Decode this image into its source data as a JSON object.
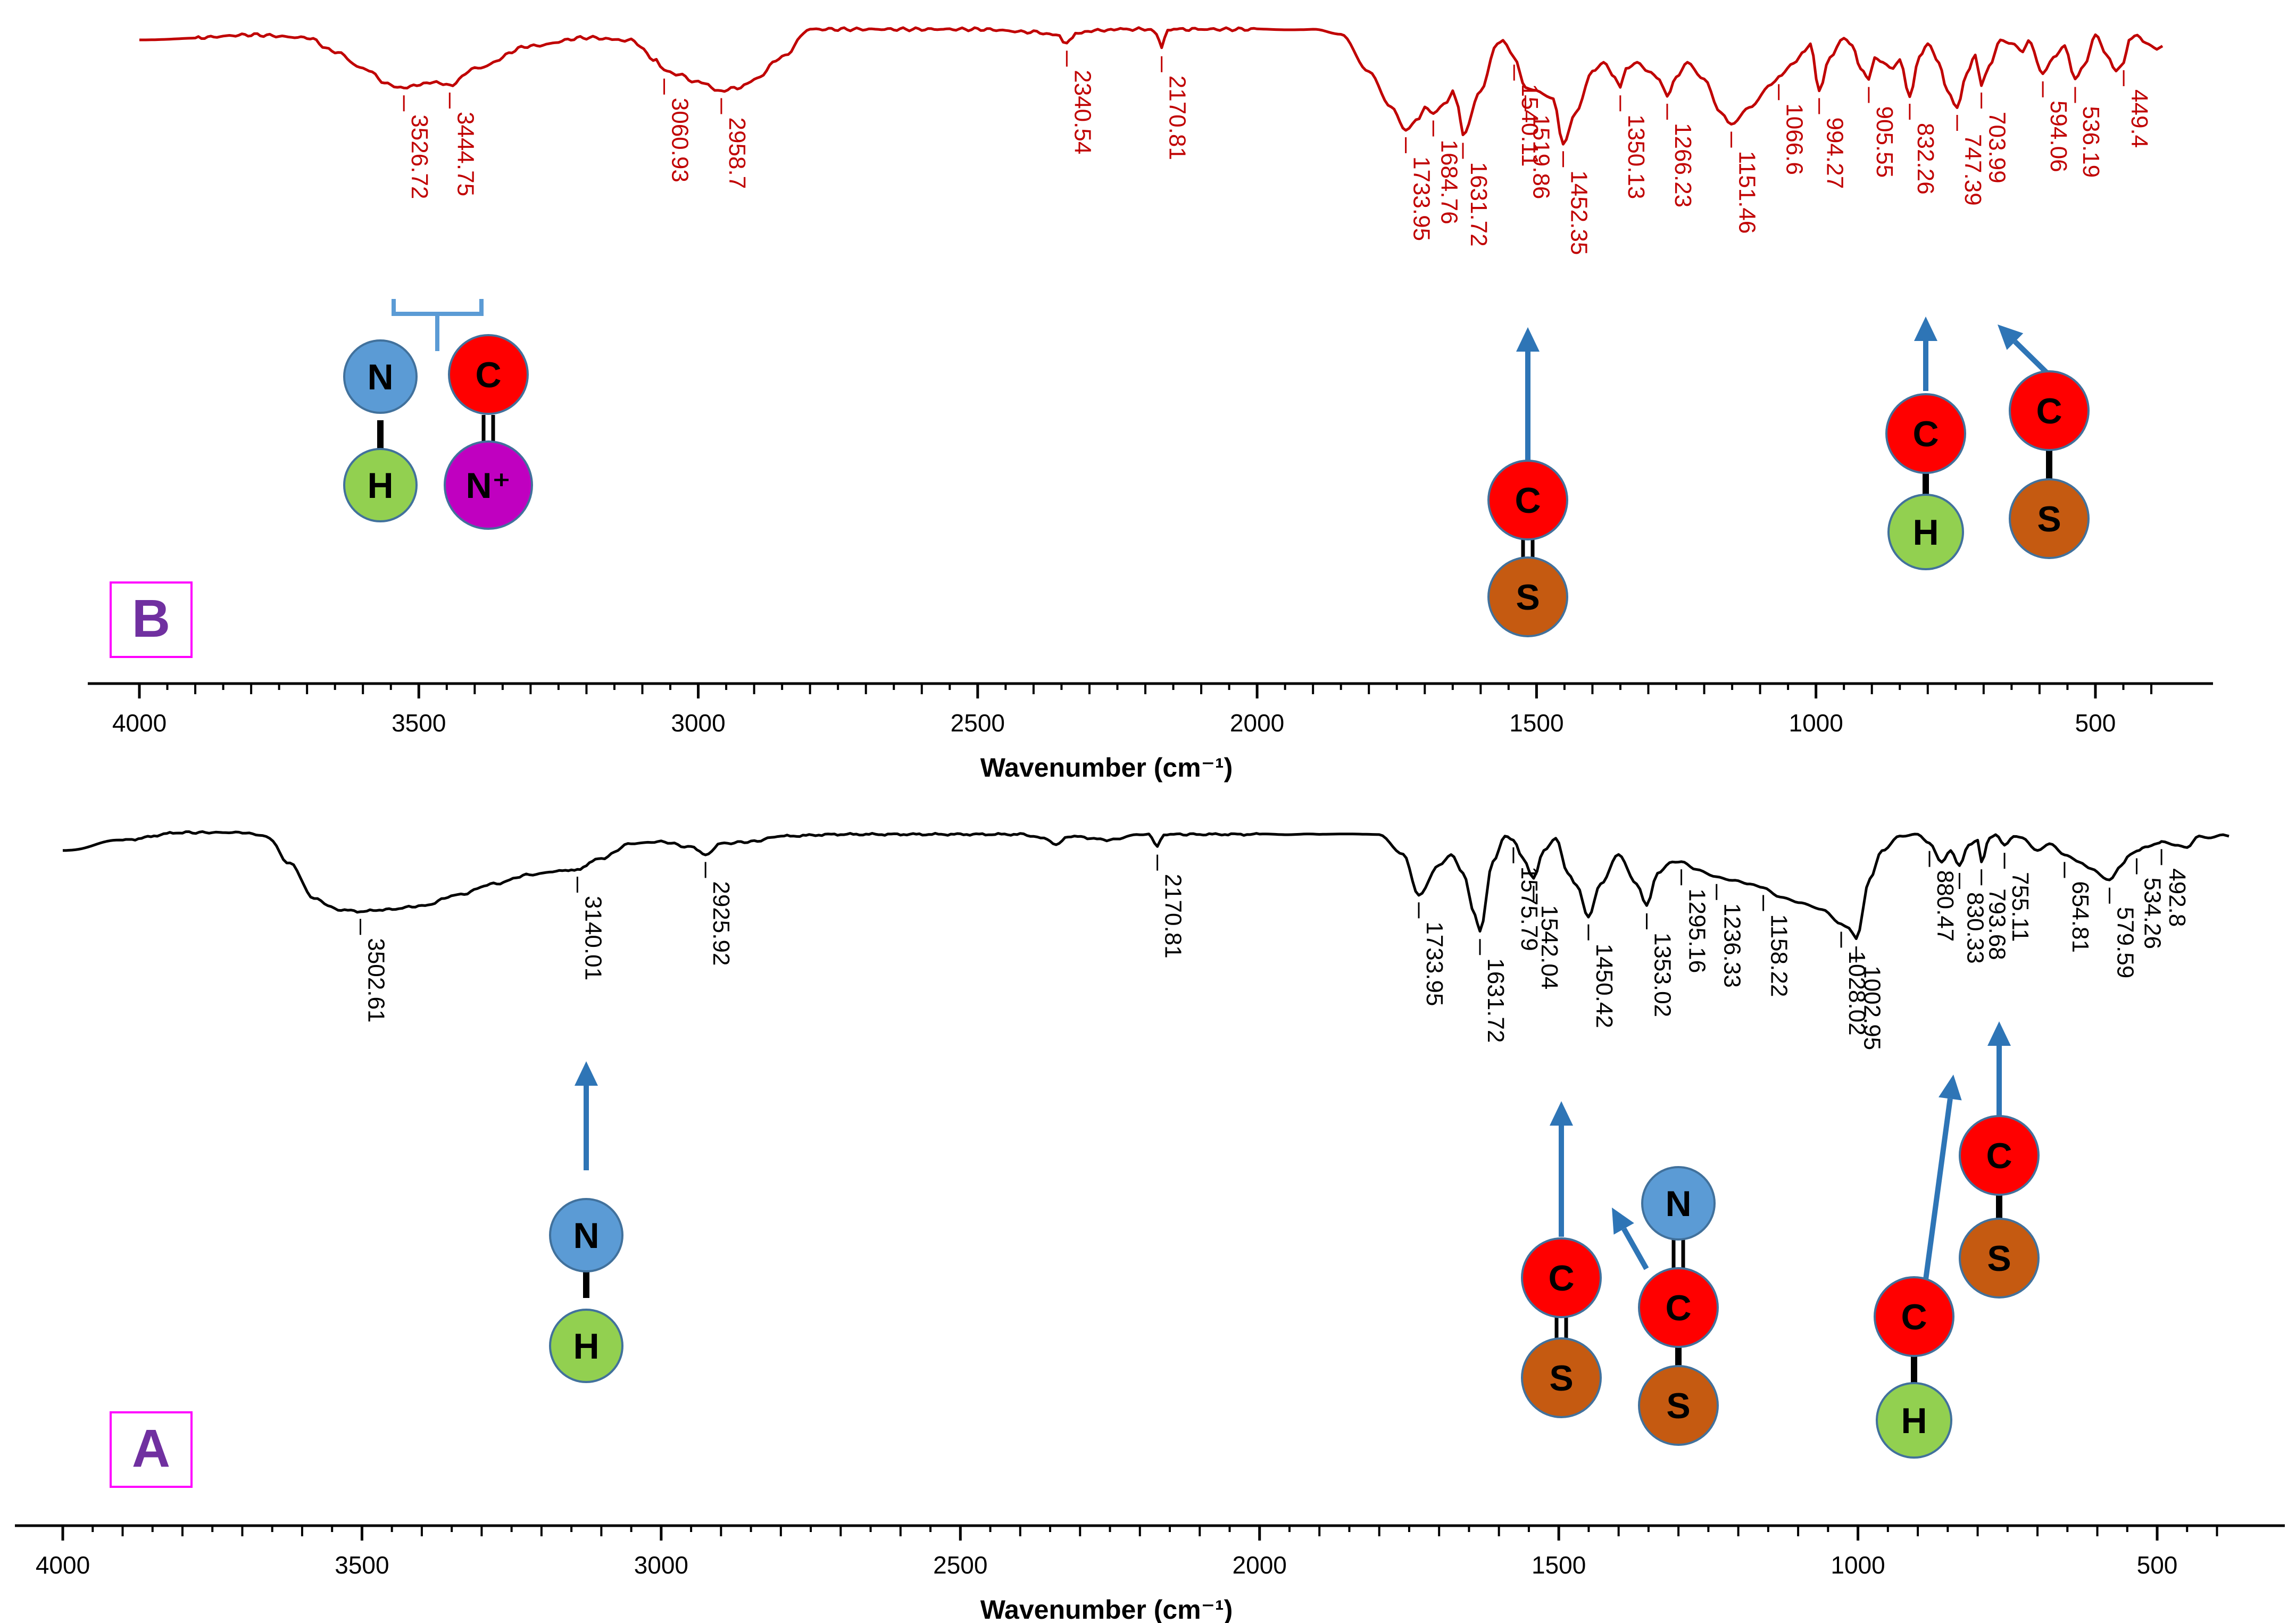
{
  "colors": {
    "spectrum_b": "#c00000",
    "spectrum_a": "#000000",
    "arrow": "#2e75b6",
    "panel_label_text": "#7030a0",
    "panel_label_border": "#ff00ff",
    "atom_N": "#5b9bd5",
    "atom_C": "#ff0000",
    "atom_H": "#92d050",
    "atom_S": "#c55a11",
    "atom_Nplus": "#c000c0"
  },
  "chart_data": [
    {
      "type": "line",
      "panel_label": "B",
      "title": "",
      "xlabel": "Wavenumber (cm⁻¹)",
      "ylabel": "",
      "xlim": [
        4000,
        380
      ],
      "ylim": [
        0,
        100
      ],
      "x_ticks": [
        4000,
        3500,
        3000,
        2500,
        2000,
        1500,
        1000,
        500
      ],
      "x_tick_labels": [
        "4000",
        "3500",
        "3000",
        "2500",
        "2000",
        "1500",
        "1000",
        "500"
      ],
      "series": [
        {
          "name": "B",
          "x": [
            4000,
            3900,
            3800,
            3700,
            3650,
            3600,
            3550,
            3526.72,
            3480,
            3444.75,
            3400,
            3300,
            3200,
            3120,
            3075,
            3060.93,
            3040,
            3000,
            2958.7,
            2930,
            2900,
            2850,
            2800,
            2700,
            2600,
            2500,
            2400,
            2360,
            2340.54,
            2320,
            2250,
            2190,
            2180,
            2170.81,
            2160,
            2100,
            2000,
            1900,
            1850,
            1800,
            1760,
            1733.95,
            1710,
            1700,
            1684.76,
            1660,
            1650,
            1640,
            1631.72,
            1600,
            1570,
            1560,
            1540.11,
            1519.86,
            1500,
            1470,
            1452.35,
            1430,
            1400,
            1380,
            1360,
            1350.13,
            1340,
            1320,
            1300,
            1280,
            1266.23,
            1250,
            1230,
            1200,
            1170,
            1151.46,
            1120,
            1080,
            1066.6,
            1040,
            1020,
            1010,
            994.27,
            975,
            950,
            935,
            920,
            905.55,
            895,
            880,
            862,
            850,
            832.26,
            815,
            800,
            780,
            765,
            747.39,
            730,
            715,
            703.99,
            690,
            670,
            650,
            630,
            620,
            594.06,
            575,
            555,
            536.19,
            520,
            500,
            480,
            463,
            449.4,
            440,
            425,
            410,
            400,
            390,
            380
          ],
          "values": [
            96,
            97,
            98,
            97,
            92,
            86,
            80,
            79,
            81,
            80,
            86,
            94,
            97,
            96,
            89,
            85,
            84,
            81,
            78,
            79,
            82,
            90,
            100,
            100,
            100,
            100,
            99,
            98,
            95,
            99,
            100,
            100,
            98,
            93,
            100,
            100,
            100,
            100,
            98,
            85,
            72,
            64,
            68,
            72,
            70,
            74,
            78,
            72,
            62,
            78,
            95,
            96,
            90,
            79,
            78,
            75,
            59,
            70,
            85,
            88,
            83,
            79,
            86,
            88,
            85,
            82,
            76,
            83,
            88,
            82,
            70,
            66,
            72,
            80,
            83,
            88,
            92,
            95,
            78,
            90,
            97,
            94,
            86,
            82,
            90,
            88,
            86,
            89,
            76,
            90,
            95,
            88,
            78,
            72,
            84,
            91,
            80,
            87,
            96,
            95,
            92,
            96,
            84,
            90,
            94,
            82,
            87,
            98,
            91,
            85,
            88,
            96,
            98,
            95,
            94,
            93,
            94
          ]
        }
      ],
      "annotations": [
        "3526.72",
        "3444.75",
        "3060.93",
        "2958.7",
        "2340.54",
        "2170.81",
        "1733.95",
        "1684.76",
        "1631.72",
        "1540.11",
        "1519.86",
        "1452.35",
        "1350.13",
        "1266.23",
        "1151.46",
        "1066.6",
        "994.27",
        "905.55",
        "832.26",
        "747.39",
        "703.99",
        "594.06",
        "536.19",
        "449.4"
      ]
    },
    {
      "type": "line",
      "panel_label": "A",
      "title": "",
      "xlabel": "Wavenumber (cm⁻¹)",
      "ylabel": "",
      "xlim": [
        4000,
        380
      ],
      "ylim": [
        0,
        100
      ],
      "x_ticks": [
        4000,
        3500,
        3000,
        2500,
        2000,
        1500,
        1000,
        500
      ],
      "x_tick_labels": [
        "4000",
        "3500",
        "3000",
        "2500",
        "2000",
        "1500",
        "1000",
        "500"
      ],
      "series": [
        {
          "name": "A",
          "x": [
            4000,
            3900,
            3800,
            3750,
            3700,
            3660,
            3620,
            3580,
            3540,
            3502.61,
            3460,
            3400,
            3340,
            3280,
            3220,
            3170,
            3140.01,
            3100,
            3050,
            3000,
            2950,
            2925.92,
            2900,
            2850,
            2800,
            2700,
            2600,
            2500,
            2400,
            2360,
            2340,
            2320,
            2250,
            2200,
            2185,
            2170.81,
            2160,
            2100,
            2000,
            1900,
            1850,
            1800,
            1760,
            1733.95,
            1700,
            1680,
            1660,
            1640,
            1631.72,
            1610,
            1590,
            1575.79,
            1560,
            1542.04,
            1525,
            1505,
            1485,
            1470,
            1450.42,
            1430,
            1400,
            1370,
            1353.02,
            1335,
            1310,
            1295.16,
            1270,
            1236.33,
            1210,
            1180,
            1158.22,
            1130,
            1100,
            1060,
            1028.02,
            1015,
            1002.95,
            980,
            960,
            930,
            900,
            880.47,
            860,
            845,
            830.33,
            815,
            800,
            793.68,
            780,
            770,
            755.11,
            740,
            725,
            700,
            680,
            654.81,
            630,
            610,
            579.59,
            560,
            545,
            534.26,
            520,
            500,
            492.8,
            470,
            450,
            430,
            410,
            390,
            380
          ],
          "values": [
            90,
            96,
            100,
            100,
            100,
            98,
            83,
            64,
            58,
            57,
            58,
            60,
            66,
            72,
            77,
            79,
            80,
            86,
            94,
            95,
            92,
            88,
            94,
            95,
            98,
            99,
            99,
            99,
            99,
            97,
            93,
            98,
            96,
            99,
            99,
            92,
            99,
            99,
            99,
            99,
            99,
            99,
            88,
            66,
            82,
            88,
            78,
            55,
            46,
            84,
            98,
            96,
            86,
            75,
            90,
            97,
            78,
            71,
            54,
            72,
            88,
            72,
            60,
            78,
            84,
            84,
            80,
            76,
            74,
            72,
            70,
            65,
            62,
            58,
            50,
            48,
            42,
            75,
            90,
            98,
            99,
            94,
            84,
            90,
            82,
            93,
            96,
            84,
            97,
            99,
            93,
            98,
            97,
            90,
            94,
            88,
            84,
            80,
            74,
            82,
            88,
            90,
            92,
            94,
            95,
            93,
            92,
            98,
            97,
            99,
            98
          ]
        }
      ],
      "annotations": [
        "3502.61",
        "3140.01",
        "2925.92",
        "2170.81",
        "1733.95",
        "1631.72",
        "1575.79",
        "1542.04",
        "1450.42",
        "1353.02",
        "1295.16",
        "1236.33",
        "1158.22",
        "1028.02",
        "1002.95",
        "880.47",
        "830.33",
        "793.68",
        "755.11",
        "654.81",
        "579.59",
        "534.26",
        "492.8"
      ]
    }
  ],
  "atoms": {
    "N": "N",
    "H": "H",
    "C": "C",
    "S": "S",
    "N_plus": "N⁺"
  }
}
